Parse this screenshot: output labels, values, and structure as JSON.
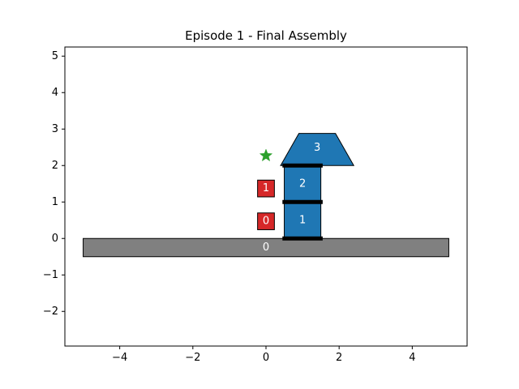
{
  "chart_data": {
    "type": "scatter",
    "title": "Episode 1 - Final Assembly",
    "xlabel": "",
    "ylabel": "",
    "xlim": [
      -5.5,
      5.5
    ],
    "ylim": [
      -2.95,
      5.25
    ],
    "x_ticks": [
      -4,
      -2,
      0,
      2,
      4
    ],
    "y_ticks": [
      -2,
      -1,
      0,
      1,
      2,
      3,
      4,
      5
    ],
    "x_tick_labels": [
      "−4",
      "−2",
      "0",
      "2",
      "4"
    ],
    "y_tick_labels": [
      "−2",
      "−1",
      "0",
      "1",
      "2",
      "3",
      "4",
      "5"
    ],
    "grid": false,
    "ground": {
      "label": "0",
      "x": [
        -5,
        5
      ],
      "y": [
        -0.5,
        0
      ],
      "color": "#808080"
    },
    "blocks": [
      {
        "label": "1",
        "shape": "rect",
        "x": [
          0.5,
          1.5
        ],
        "y": [
          0,
          1
        ],
        "color": "#1f77b4"
      },
      {
        "label": "2",
        "shape": "rect",
        "x": [
          0.5,
          1.5
        ],
        "y": [
          1,
          2
        ],
        "color": "#1f77b4"
      },
      {
        "label": "3",
        "shape": "trapezoid",
        "bottom_x": [
          0.4,
          2.4
        ],
        "top_x": [
          0.9,
          1.9
        ],
        "y": [
          2,
          2.88
        ],
        "color": "#1f77b4"
      }
    ],
    "joints": [
      {
        "x": [
          0.45,
          1.55
        ],
        "y": 0
      },
      {
        "x": [
          0.45,
          1.55
        ],
        "y": 1
      },
      {
        "x": [
          0.45,
          1.55
        ],
        "y": 2
      }
    ],
    "markers": [
      {
        "label": "0",
        "x": 0,
        "y": 0.47,
        "size": 0.46,
        "color": "#d62728"
      },
      {
        "label": "1",
        "x": 0,
        "y": 1.37,
        "size": 0.46,
        "color": "#d62728"
      }
    ],
    "target": {
      "x": 0,
      "y": 2.27,
      "marker": "star",
      "color": "#2ca02c"
    }
  }
}
